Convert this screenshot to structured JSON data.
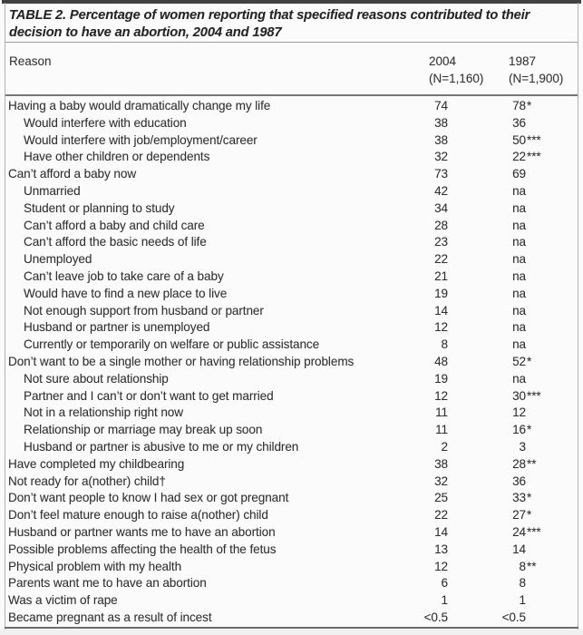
{
  "table": {
    "title_line1": "TABLE 2. Percentage of women reporting that specified reasons contributed to their",
    "title_line2": "decision to have an abortion, 2004 and 1987",
    "header": {
      "reason": "Reason",
      "col_2004": {
        "year": "2004",
        "n": "(N=1,160)"
      },
      "col_1987": {
        "year": "1987",
        "n": "(N=1,900)"
      }
    },
    "rows": [
      {
        "reason": "Having a baby would dramatically change my life",
        "indent": 0,
        "pct_2004": "74",
        "pct_1987": "78",
        "sig_1987": "*"
      },
      {
        "reason": "Would interfere with education",
        "indent": 1,
        "pct_2004": "38",
        "pct_1987": "36",
        "sig_1987": ""
      },
      {
        "reason": "Would interfere with job/employment/career",
        "indent": 1,
        "pct_2004": "38",
        "pct_1987": "50",
        "sig_1987": "***"
      },
      {
        "reason": "Have other children or dependents",
        "indent": 1,
        "pct_2004": "32",
        "pct_1987": "22",
        "sig_1987": "***"
      },
      {
        "reason": "Can’t afford a baby now",
        "indent": 0,
        "pct_2004": "73",
        "pct_1987": "69",
        "sig_1987": ""
      },
      {
        "reason": "Unmarried",
        "indent": 1,
        "pct_2004": "42",
        "pct_1987": "na",
        "sig_1987": ""
      },
      {
        "reason": "Student or planning to study",
        "indent": 1,
        "pct_2004": "34",
        "pct_1987": "na",
        "sig_1987": ""
      },
      {
        "reason": "Can’t afford a baby and child care",
        "indent": 1,
        "pct_2004": "28",
        "pct_1987": "na",
        "sig_1987": ""
      },
      {
        "reason": "Can’t afford the basic needs of life",
        "indent": 1,
        "pct_2004": "23",
        "pct_1987": "na",
        "sig_1987": ""
      },
      {
        "reason": "Unemployed",
        "indent": 1,
        "pct_2004": "22",
        "pct_1987": "na",
        "sig_1987": ""
      },
      {
        "reason": "Can’t leave job to take care of a baby",
        "indent": 1,
        "pct_2004": "21",
        "pct_1987": "na",
        "sig_1987": ""
      },
      {
        "reason": "Would have to find a new place to live",
        "indent": 1,
        "pct_2004": "19",
        "pct_1987": "na",
        "sig_1987": ""
      },
      {
        "reason": "Not enough support from husband or partner",
        "indent": 1,
        "pct_2004": "14",
        "pct_1987": "na",
        "sig_1987": ""
      },
      {
        "reason": "Husband or partner is unemployed",
        "indent": 1,
        "pct_2004": "12",
        "pct_1987": "na",
        "sig_1987": ""
      },
      {
        "reason": "Currently or temporarily on welfare or public assistance",
        "indent": 1,
        "pct_2004": "8",
        "pct_1987": "na",
        "sig_1987": ""
      },
      {
        "reason": "Don’t want to be a single mother or having relationship problems",
        "indent": 0,
        "pct_2004": "48",
        "pct_1987": "52",
        "sig_1987": "*"
      },
      {
        "reason": "Not sure about relationship",
        "indent": 1,
        "pct_2004": "19",
        "pct_1987": "na",
        "sig_1987": ""
      },
      {
        "reason": "Partner and I can’t or don’t want to get married",
        "indent": 1,
        "pct_2004": "12",
        "pct_1987": "30",
        "sig_1987": "***"
      },
      {
        "reason": "Not in a relationship right now",
        "indent": 1,
        "pct_2004": "11",
        "pct_1987": "12",
        "sig_1987": ""
      },
      {
        "reason": "Relationship or marriage may break up soon",
        "indent": 1,
        "pct_2004": "11",
        "pct_1987": "16",
        "sig_1987": "*"
      },
      {
        "reason": "Husband or partner is abusive to me or my children",
        "indent": 1,
        "pct_2004": "2",
        "pct_1987": "3",
        "sig_1987": ""
      },
      {
        "reason": "Have completed my childbearing",
        "indent": 0,
        "pct_2004": "38",
        "pct_1987": "28",
        "sig_1987": "**"
      },
      {
        "reason": "Not ready for a(nother) child†",
        "indent": 0,
        "pct_2004": "32",
        "pct_1987": "36",
        "sig_1987": ""
      },
      {
        "reason": "Don’t want people to know I had sex or got pregnant",
        "indent": 0,
        "pct_2004": "25",
        "pct_1987": "33",
        "sig_1987": "*"
      },
      {
        "reason": "Don’t feel mature enough to raise a(nother) child",
        "indent": 0,
        "pct_2004": "22",
        "pct_1987": "27",
        "sig_1987": "*"
      },
      {
        "reason": "Husband or partner wants me to have an abortion",
        "indent": 0,
        "pct_2004": "14",
        "pct_1987": "24",
        "sig_1987": "***"
      },
      {
        "reason": "Possible problems affecting the health of the fetus",
        "indent": 0,
        "pct_2004": "13",
        "pct_1987": "14",
        "sig_1987": ""
      },
      {
        "reason": "Physical problem with my health",
        "indent": 0,
        "pct_2004": "12",
        "pct_1987": "8",
        "sig_1987": "**"
      },
      {
        "reason": "Parents want me to have an abortion",
        "indent": 0,
        "pct_2004": "6",
        "pct_1987": "8",
        "sig_1987": ""
      },
      {
        "reason": "Was a victim of rape",
        "indent": 0,
        "pct_2004": "1",
        "pct_1987": "1",
        "sig_1987": ""
      },
      {
        "reason": "Became pregnant as a result of incest",
        "indent": 0,
        "pct_2004": "<0.5",
        "pct_1987": "<0.5",
        "sig_1987": ""
      }
    ]
  },
  "colors": {
    "top_bar": "#414141",
    "side_border": "#b3b3b3",
    "title_rule": "#9c9c9c",
    "header_rule": "#767676",
    "bottom_rule": "#6b6b6b",
    "text": "#303030",
    "background": "#fbfbfb"
  }
}
